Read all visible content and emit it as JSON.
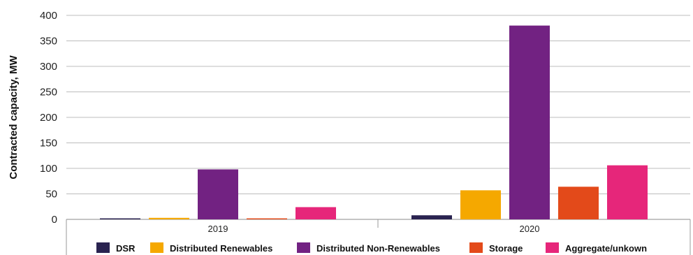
{
  "chart_data": {
    "type": "bar",
    "categories": [
      "2019",
      "2020"
    ],
    "series": [
      {
        "name": "DSR",
        "color": "#2a2350",
        "values": [
          2,
          8
        ]
      },
      {
        "name": "Distributed Renewables",
        "color": "#f5a800",
        "values": [
          3,
          57
        ]
      },
      {
        "name": "Distributed Non-Renewables",
        "color": "#722282",
        "values": [
          98,
          380
        ]
      },
      {
        "name": "Storage",
        "color": "#e34a1a",
        "values": [
          2,
          64
        ]
      },
      {
        "name": "Aggregate/unkown",
        "color": "#e6267a",
        "values": [
          24,
          106
        ]
      }
    ],
    "yticks": [
      "0",
      "50",
      "100",
      "150",
      "200",
      "250",
      "300",
      "350",
      "400"
    ],
    "ylim": [
      0,
      400
    ],
    "ylabel": "Contracted capacity, MW",
    "xlabel": "",
    "title": "",
    "grid": true,
    "legend_position": "bottom"
  }
}
